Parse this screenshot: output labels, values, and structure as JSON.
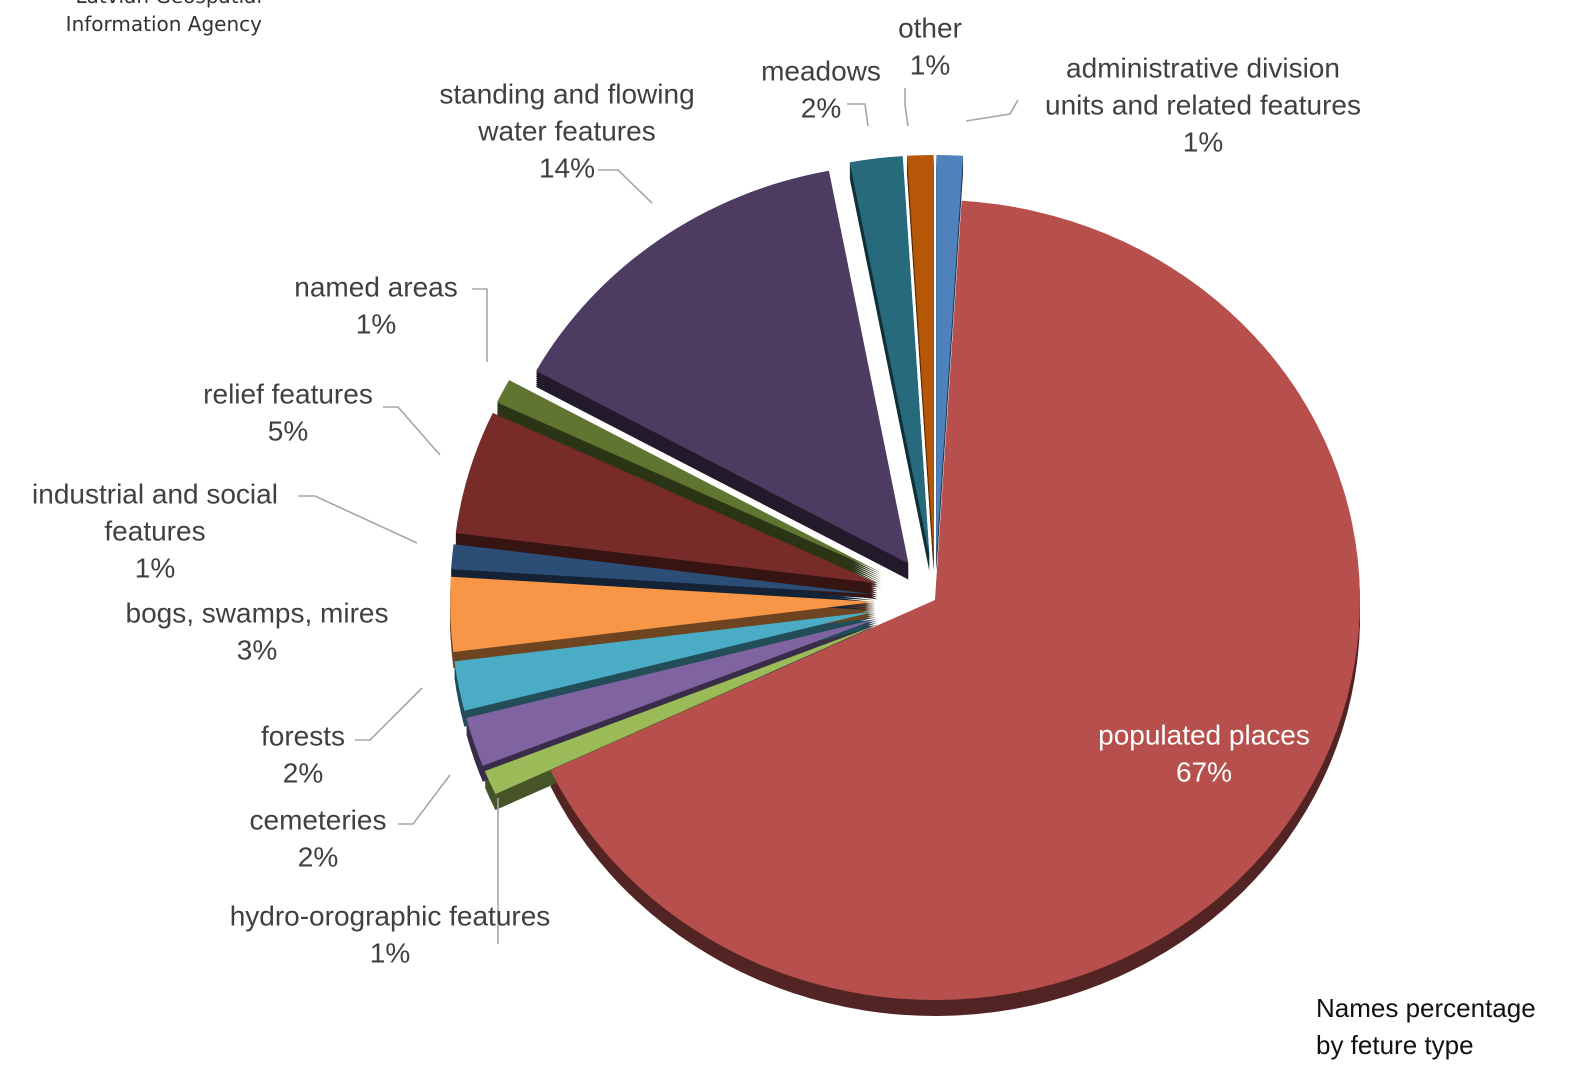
{
  "logo": {
    "line1": "Latvian Geospatial",
    "line2": "Information Agency"
  },
  "caption": {
    "line1": "Names percentage",
    "line2": "by feture type"
  },
  "chart_data": {
    "type": "pie",
    "style": "3d-exploded",
    "slices": [
      {
        "label_lines": [
          "administrative division",
          "units and related features"
        ],
        "value": 1,
        "value_label": "1%",
        "color": "#4f81bd"
      },
      {
        "label_lines": [
          "populated places"
        ],
        "value": 67,
        "value_label": "67%",
        "color": "#b7504d"
      },
      {
        "label_lines": [
          "hydro-orographic features"
        ],
        "value": 1,
        "value_label": "1%",
        "color": "#9bbb59"
      },
      {
        "label_lines": [
          "cemeteries"
        ],
        "value": 2,
        "value_label": "2%",
        "color": "#8064a2"
      },
      {
        "label_lines": [
          "forests"
        ],
        "value": 2,
        "value_label": "2%",
        "color": "#4bacc6"
      },
      {
        "label_lines": [
          "bogs, swamps, mires"
        ],
        "value": 3,
        "value_label": "3%",
        "color": "#f79646"
      },
      {
        "label_lines": [
          "industrial and social",
          "features"
        ],
        "value": 1,
        "value_label": "1%",
        "color": "#2c4d75"
      },
      {
        "label_lines": [
          "relief features"
        ],
        "value": 5,
        "value_label": "5%",
        "color": "#772c2a"
      },
      {
        "label_lines": [
          "named areas"
        ],
        "value": 1,
        "value_label": "1%",
        "color": "#5f7530"
      },
      {
        "label_lines": [
          "standing and flowing",
          "water features"
        ],
        "value": 14,
        "value_label": "14%",
        "color": "#4d3b62"
      },
      {
        "label_lines": [
          "meadows"
        ],
        "value": 2,
        "value_label": "2%",
        "color": "#276a7c"
      },
      {
        "label_lines": [
          "other"
        ],
        "value": 1,
        "value_label": "1%",
        "color": "#b65708"
      }
    ]
  }
}
